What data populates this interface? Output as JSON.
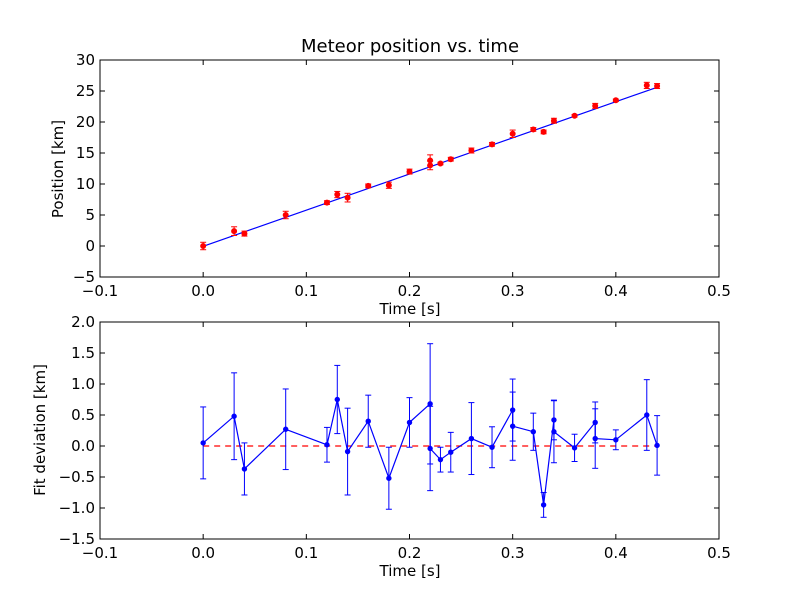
{
  "chart_data": [
    {
      "type": "scatter",
      "title": "Meteor position vs. time",
      "xlabel": "Time [s]",
      "ylabel": "Position [km]",
      "xlim": [
        -0.1,
        0.5
      ],
      "ylim": [
        -5,
        30
      ],
      "xticks": [
        "−0.1",
        "0.0",
        "0.1",
        "0.2",
        "0.3",
        "0.4",
        "0.5"
      ],
      "yticks": [
        "−5",
        "0",
        "5",
        "10",
        "15",
        "20",
        "25",
        "30"
      ],
      "grid": false,
      "colors": {
        "points": "#ff0000",
        "fit": "#0000ff"
      },
      "series": [
        {
          "type": "scatter-errorbar",
          "x": [
            0.0,
            0.03,
            0.04,
            0.08,
            0.12,
            0.13,
            0.14,
            0.16,
            0.18,
            0.2,
            0.22,
            0.22,
            0.23,
            0.24,
            0.26,
            0.28,
            0.3,
            0.32,
            0.33,
            0.34,
            0.36,
            0.38,
            0.4,
            0.43,
            0.44
          ],
          "y": [
            0.0,
            2.4,
            2.0,
            5.0,
            7.0,
            8.3,
            7.8,
            9.7,
            9.8,
            12.0,
            13.8,
            13.0,
            13.3,
            14.0,
            15.4,
            16.4,
            18.1,
            18.8,
            18.4,
            20.2,
            21.0,
            22.6,
            23.5,
            25.9,
            25.8
          ],
          "err": [
            0.6,
            0.7,
            0.4,
            0.6,
            0.3,
            0.5,
            0.7,
            0.3,
            0.5,
            0.4,
            0.9,
            0.7,
            0.2,
            0.3,
            0.4,
            0.3,
            0.6,
            0.3,
            0.3,
            0.4,
            0.2,
            0.4,
            0.2,
            0.5,
            0.4
          ]
        },
        {
          "type": "line",
          "x": [
            0.0,
            0.44
          ],
          "y": [
            -0.05,
            25.6
          ]
        }
      ]
    },
    {
      "type": "line",
      "xlabel": "Time [s]",
      "ylabel": "Fit deviation [km]",
      "xlim": [
        -0.1,
        0.5
      ],
      "ylim": [
        -1.5,
        2.0
      ],
      "xticks": [
        "−0.1",
        "0.0",
        "0.1",
        "0.2",
        "0.3",
        "0.4",
        "0.5"
      ],
      "yticks": [
        "−1.5",
        "−1.0",
        "−0.5",
        "0.0",
        "0.5",
        "1.0",
        "1.5",
        "2.0"
      ],
      "grid": false,
      "colors": {
        "residual": "#0000ff",
        "zero": "#ff0000"
      },
      "series": [
        {
          "type": "line-errorbar",
          "x": [
            0.0,
            0.03,
            0.04,
            0.08,
            0.12,
            0.13,
            0.14,
            0.16,
            0.18,
            0.2,
            0.22,
            0.22,
            0.23,
            0.24,
            0.26,
            0.28,
            0.3,
            0.3,
            0.32,
            0.33,
            0.34,
            0.34,
            0.36,
            0.38,
            0.38,
            0.4,
            0.43,
            0.44
          ],
          "y": [
            0.05,
            0.48,
            -0.37,
            0.27,
            0.02,
            0.75,
            -0.09,
            0.4,
            -0.52,
            0.38,
            0.68,
            -0.04,
            -0.22,
            -0.1,
            0.12,
            -0.02,
            0.58,
            0.32,
            0.23,
            -0.95,
            0.42,
            0.23,
            -0.03,
            0.38,
            0.12,
            0.1,
            0.5,
            0.01
          ],
          "err": [
            0.58,
            0.7,
            0.42,
            0.65,
            0.28,
            0.55,
            0.7,
            0.42,
            0.5,
            0.4,
            0.97,
            0.68,
            0.2,
            0.32,
            0.58,
            0.33,
            0.5,
            0.55,
            0.3,
            0.2,
            0.32,
            0.5,
            0.22,
            0.33,
            0.48,
            0.16,
            0.57,
            0.48
          ]
        },
        {
          "type": "dashed-line",
          "x": [
            0.0,
            0.44
          ],
          "y": [
            0.0,
            0.0
          ]
        }
      ]
    }
  ]
}
